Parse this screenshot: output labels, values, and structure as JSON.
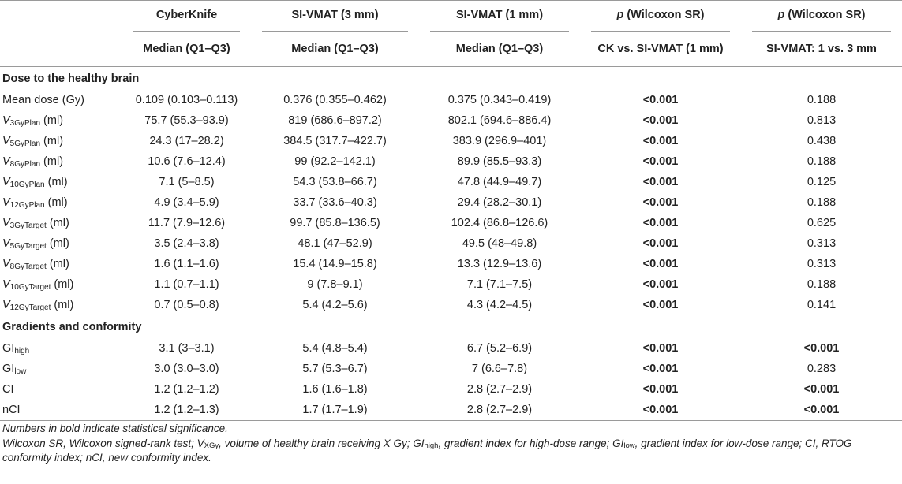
{
  "header": {
    "columns": [
      {
        "title": "",
        "sub": ""
      },
      {
        "title": "CyberKnife",
        "sub": "Median (Q1–Q3)"
      },
      {
        "title": "SI-VMAT (3 mm)",
        "sub": "Median (Q1–Q3)"
      },
      {
        "title": "SI-VMAT (1 mm)",
        "sub": "Median (Q1–Q3)"
      },
      {
        "title_p": "p",
        "title_rest": " (Wilcoxon SR)",
        "sub": "CK vs. SI-VMAT (1 mm)"
      },
      {
        "title_p": "p",
        "title_rest": " (Wilcoxon SR)",
        "sub": "SI-VMAT: 1 vs. 3 mm"
      }
    ]
  },
  "sections": [
    {
      "title": "Dose to the healthy brain",
      "rows": [
        {
          "label": "Mean dose (Gy)",
          "ck": "0.109 (0.103–0.113)",
          "vmat3": "0.376 (0.355–0.462)",
          "vmat1": "0.375 (0.343–0.419)",
          "p1": "<0.001",
          "p1_bold": true,
          "p2": "0.188",
          "p2_bold": false
        },
        {
          "var": "V",
          "sub": "3GyPlan",
          "unit": " (ml)",
          "ck": "75.7 (55.3–93.9)",
          "vmat3": "819 (686.6–897.2)",
          "vmat1": "802.1 (694.6–886.4)",
          "p1": "<0.001",
          "p1_bold": true,
          "p2": "0.813",
          "p2_bold": false
        },
        {
          "var": "V",
          "sub": "5GyPlan",
          "unit": " (ml)",
          "ck": "24.3 (17–28.2)",
          "vmat3": "384.5 (317.7–422.7)",
          "vmat1": "383.9 (296.9–401)",
          "p1": "<0.001",
          "p1_bold": true,
          "p2": "0.438",
          "p2_bold": false
        },
        {
          "var": "V",
          "sub": "8GyPlan",
          "unit": " (ml)",
          "ck": "10.6 (7.6–12.4)",
          "vmat3": "99 (92.2–142.1)",
          "vmat1": "89.9 (85.5–93.3)",
          "p1": "<0.001",
          "p1_bold": true,
          "p2": "0.188",
          "p2_bold": false
        },
        {
          "var": "V",
          "sub": "10GyPlan",
          "unit": " (ml)",
          "ck": "7.1 (5–8.5)",
          "vmat3": "54.3 (53.8–66.7)",
          "vmat1": "47.8 (44.9–49.7)",
          "p1": "<0.001",
          "p1_bold": true,
          "p2": "0.125",
          "p2_bold": false
        },
        {
          "var": "V",
          "sub": "12GyPlan",
          "unit": " (ml)",
          "ck": "4.9 (3.4–5.9)",
          "vmat3": "33.7 (33.6–40.3)",
          "vmat1": "29.4 (28.2–30.1)",
          "p1": "<0.001",
          "p1_bold": true,
          "p2": "0.188",
          "p2_bold": false
        },
        {
          "var": "V",
          "sub": "3GyTarget",
          "unit": " (ml)",
          "ck": "11.7 (7.9–12.6)",
          "vmat3": "99.7 (85.8–136.5)",
          "vmat1": "102.4 (86.8–126.6)",
          "p1": "<0.001",
          "p1_bold": true,
          "p2": "0.625",
          "p2_bold": false
        },
        {
          "var": "V",
          "sub": "5GyTarget",
          "unit": " (ml)",
          "ck": "3.5 (2.4–3.8)",
          "vmat3": "48.1 (47–52.9)",
          "vmat1": "49.5 (48–49.8)",
          "p1": "<0.001",
          "p1_bold": true,
          "p2": "0.313",
          "p2_bold": false
        },
        {
          "var": "V",
          "sub": "8GyTarget",
          "unit": " (ml)",
          "ck": "1.6 (1.1–1.6)",
          "vmat3": "15.4 (14.9–15.8)",
          "vmat1": "13.3 (12.9–13.6)",
          "p1": "<0.001",
          "p1_bold": true,
          "p2": "0.313",
          "p2_bold": false
        },
        {
          "var": "V",
          "sub": "10GyTarget",
          "unit": " (ml)",
          "ck": "1.1 (0.7–1.1)",
          "vmat3": "9 (7.8–9.1)",
          "vmat1": "7.1 (7.1–7.5)",
          "p1": "<0.001",
          "p1_bold": true,
          "p2": "0.188",
          "p2_bold": false
        },
        {
          "var": "V",
          "sub": "12GyTarget",
          "unit": " (ml)",
          "ck": "0.7 (0.5–0.8)",
          "vmat3": "5.4 (4.2–5.6)",
          "vmat1": "4.3 (4.2–4.5)",
          "p1": "<0.001",
          "p1_bold": true,
          "p2": "0.141",
          "p2_bold": false
        }
      ]
    },
    {
      "title": "Gradients and conformity",
      "rows": [
        {
          "var_plain": "GI",
          "sub": "high",
          "unit": "",
          "ck": "3.1 (3–3.1)",
          "vmat3": "5.4 (4.8–5.4)",
          "vmat1": "6.7 (5.2–6.9)",
          "p1": "<0.001",
          "p1_bold": true,
          "p2": "<0.001",
          "p2_bold": true
        },
        {
          "var_plain": "GI",
          "sub": "low",
          "unit": "",
          "ck": "3.0 (3.0–3.0)",
          "vmat3": "5.7 (5.3–6.7)",
          "vmat1": "7 (6.6–7.8)",
          "p1": "<0.001",
          "p1_bold": true,
          "p2": "0.283",
          "p2_bold": false
        },
        {
          "label": "CI",
          "ck": "1.2 (1.2–1.2)",
          "vmat3": "1.6 (1.6–1.8)",
          "vmat1": "2.8 (2.7–2.9)",
          "p1": "<0.001",
          "p1_bold": true,
          "p2": "<0.001",
          "p2_bold": true
        },
        {
          "label": "nCI",
          "ck": "1.2 (1.2–1.3)",
          "vmat3": "1.7 (1.7–1.9)",
          "vmat1": "2.8 (2.7–2.9)",
          "p1": "<0.001",
          "p1_bold": true,
          "p2": "<0.001",
          "p2_bold": true
        }
      ]
    }
  ],
  "footnotes": {
    "line1": "Numbers in bold indicate statistical significance.",
    "line2_parts": [
      {
        "t": "Wilcoxon SR, Wilcoxon signed-rank test; V"
      },
      {
        "sub": "XGy"
      },
      {
        "t": ", volume of healthy brain receiving X Gy; GI"
      },
      {
        "sub": "high"
      },
      {
        "t": ", gradient index for high-dose range; GI"
      },
      {
        "sub": "low"
      },
      {
        "t": ", gradient index for low-dose range; CI, RTOG conformity index; nCI, new conformity index."
      }
    ]
  }
}
